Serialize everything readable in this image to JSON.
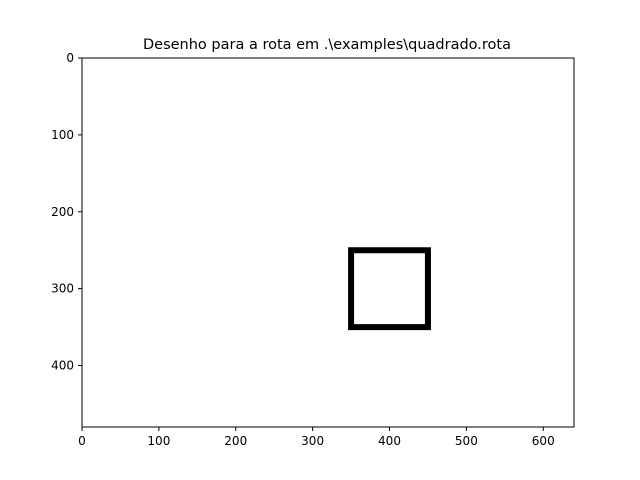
{
  "chart_data": {
    "type": "line",
    "title": "Desenho para a rota em .\\examples\\quadrado.rota",
    "xlabel": "",
    "ylabel": "",
    "xlim": [
      0,
      640
    ],
    "ylim": [
      480,
      0
    ],
    "y_inverted": true,
    "grid": false,
    "x_ticks": [
      0,
      100,
      200,
      300,
      400,
      500,
      600
    ],
    "y_ticks": [
      0,
      100,
      200,
      300,
      400
    ],
    "series": [
      {
        "color": "#000000",
        "x": [
          350,
          450,
          450,
          350,
          350
        ],
        "y": [
          250,
          250,
          350,
          350,
          250
        ]
      }
    ]
  }
}
